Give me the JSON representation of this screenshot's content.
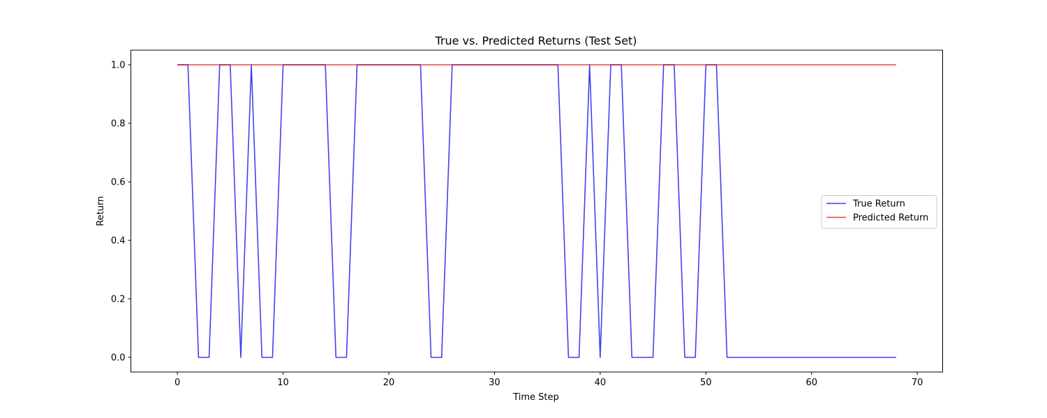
{
  "chart_data": {
    "type": "line",
    "title": "True vs. Predicted Returns (Test Set)",
    "xlabel": "Time Step",
    "ylabel": "Return",
    "xlim": [
      -4.4,
      72.4
    ],
    "ylim": [
      -0.05,
      1.05
    ],
    "xticks": [
      0,
      10,
      20,
      30,
      40,
      50,
      60,
      70
    ],
    "yticks": [
      0.0,
      0.2,
      0.4,
      0.6,
      0.8,
      1.0
    ],
    "grid": false,
    "legend_position": "center-right",
    "x": [
      0,
      1,
      2,
      3,
      4,
      5,
      6,
      7,
      8,
      9,
      10,
      11,
      12,
      13,
      14,
      15,
      16,
      17,
      18,
      19,
      20,
      21,
      22,
      23,
      24,
      25,
      26,
      27,
      28,
      29,
      30,
      31,
      32,
      33,
      34,
      35,
      36,
      37,
      38,
      39,
      40,
      41,
      42,
      43,
      44,
      45,
      46,
      47,
      48,
      49,
      50,
      51,
      52,
      53,
      54,
      55,
      56,
      57,
      58,
      59,
      60,
      61,
      62,
      63,
      64,
      65,
      66,
      67,
      68
    ],
    "series": [
      {
        "name": "True Return",
        "color": "#0000ee",
        "values": [
          1,
          1,
          0,
          0,
          1,
          1,
          0,
          1,
          0,
          0,
          1,
          1,
          1,
          1,
          1,
          0,
          0,
          1,
          1,
          1,
          1,
          1,
          1,
          1,
          0,
          0,
          1,
          1,
          1,
          1,
          1,
          1,
          1,
          1,
          1,
          1,
          1,
          0,
          0,
          1,
          0,
          1,
          1,
          0,
          0,
          0,
          1,
          1,
          0,
          0,
          1,
          1,
          0,
          0,
          0,
          0,
          0,
          0,
          0,
          0,
          0,
          0,
          0,
          0,
          0,
          0,
          0,
          0,
          0
        ]
      },
      {
        "name": "Predicted Return",
        "color": "#ee0000",
        "values": [
          1,
          1,
          1,
          1,
          1,
          1,
          1,
          1,
          1,
          1,
          1,
          1,
          1,
          1,
          1,
          1,
          1,
          1,
          1,
          1,
          1,
          1,
          1,
          1,
          1,
          1,
          1,
          1,
          1,
          1,
          1,
          1,
          1,
          1,
          1,
          1,
          1,
          1,
          1,
          1,
          1,
          1,
          1,
          1,
          1,
          1,
          1,
          1,
          1,
          1,
          1,
          1,
          1,
          1,
          1,
          1,
          1,
          1,
          1,
          1,
          1,
          1,
          1,
          1,
          1,
          1,
          1,
          1,
          1
        ]
      }
    ]
  }
}
